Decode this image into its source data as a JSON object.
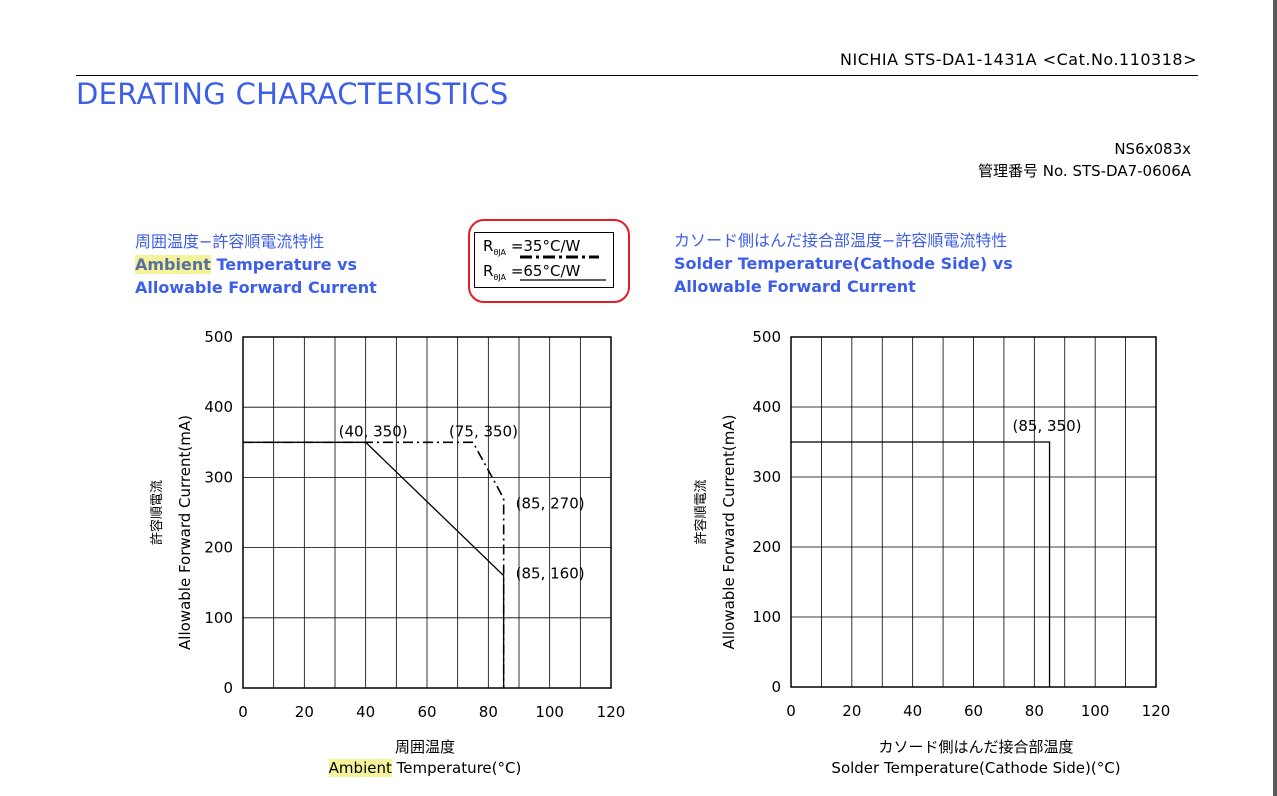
{
  "header": {
    "doc_ref": "NICHIA STS-DA1-1431A <Cat.No.110318>",
    "section_title": "DERATING CHARACTERISTICS",
    "model": "NS6x083x",
    "management_no": "管理番号 No.  STS-DA7-0606A"
  },
  "legend": {
    "rows": [
      {
        "r_symbol": "R",
        "r_sub": "θJA",
        "value": "=35°C/W",
        "line_style": "dash-dot"
      },
      {
        "r_symbol": "R",
        "r_sub": "θJA",
        "value": "=65°C/W",
        "line_style": "solid"
      }
    ],
    "highlight_color": "#e51c23"
  },
  "colors": {
    "title_blue": "#3d5ee8",
    "highlight_yellow": "#f4f39a",
    "line": "#000000"
  },
  "chart_data": [
    {
      "type": "line",
      "title_jp": "周囲温度−許容順電流特性",
      "title_en_hl": "Ambient",
      "title_en_line1_rest": " Temperature vs",
      "title_en_line2": "Allowable Forward Current",
      "xlabel_jp": "周囲温度",
      "xlabel_hl": "Ambient",
      "xlabel_rest": " Temperature(°C)",
      "ylabel_jp": "許容順電流",
      "ylabel": "Allowable Forward Current(mA)",
      "xlim": [
        0,
        120
      ],
      "ylim": [
        0,
        500
      ],
      "x_ticks": [
        0,
        20,
        40,
        60,
        80,
        100,
        120
      ],
      "y_ticks": [
        0,
        100,
        200,
        300,
        400,
        500
      ],
      "x_grid_step": 10,
      "y_grid_step": 100,
      "grid": true,
      "series": [
        {
          "style": "dash-dot",
          "x": [
            0,
            75,
            85,
            85
          ],
          "y": [
            350,
            350,
            270,
            0
          ]
        },
        {
          "style": "solid",
          "x": [
            0,
            40,
            85,
            85
          ],
          "y": [
            350,
            350,
            160,
            0
          ]
        }
      ],
      "annotations": [
        {
          "text": "(40, 350)",
          "x": 40,
          "y": 350
        },
        {
          "text": "(75, 350)",
          "x": 75,
          "y": 350
        },
        {
          "text": "(85, 270)",
          "x": 85,
          "y": 270
        },
        {
          "text": "(85, 160)",
          "x": 85,
          "y": 160
        }
      ]
    },
    {
      "type": "line",
      "title_jp": "カソード側はんだ接合部温度−許容順電流特性",
      "title_en_line1": "Solder Temperature(Cathode Side) vs",
      "title_en_line2": "Allowable Forward Current",
      "xlabel_jp": "カソード側はんだ接合部温度",
      "xlabel": "Solder Temperature(Cathode Side)(°C)",
      "ylabel_jp": "許容順電流",
      "ylabel": "Allowable Forward Current(mA)",
      "xlim": [
        0,
        120
      ],
      "ylim": [
        0,
        500
      ],
      "x_ticks": [
        0,
        20,
        40,
        60,
        80,
        100,
        120
      ],
      "y_ticks": [
        0,
        100,
        200,
        300,
        400,
        500
      ],
      "x_grid_step": 10,
      "y_grid_step": 100,
      "grid": true,
      "series": [
        {
          "style": "solid",
          "x": [
            0,
            85,
            85
          ],
          "y": [
            350,
            350,
            0
          ]
        }
      ],
      "annotations": [
        {
          "text": "(85, 350)",
          "x": 85,
          "y": 350
        }
      ]
    }
  ]
}
